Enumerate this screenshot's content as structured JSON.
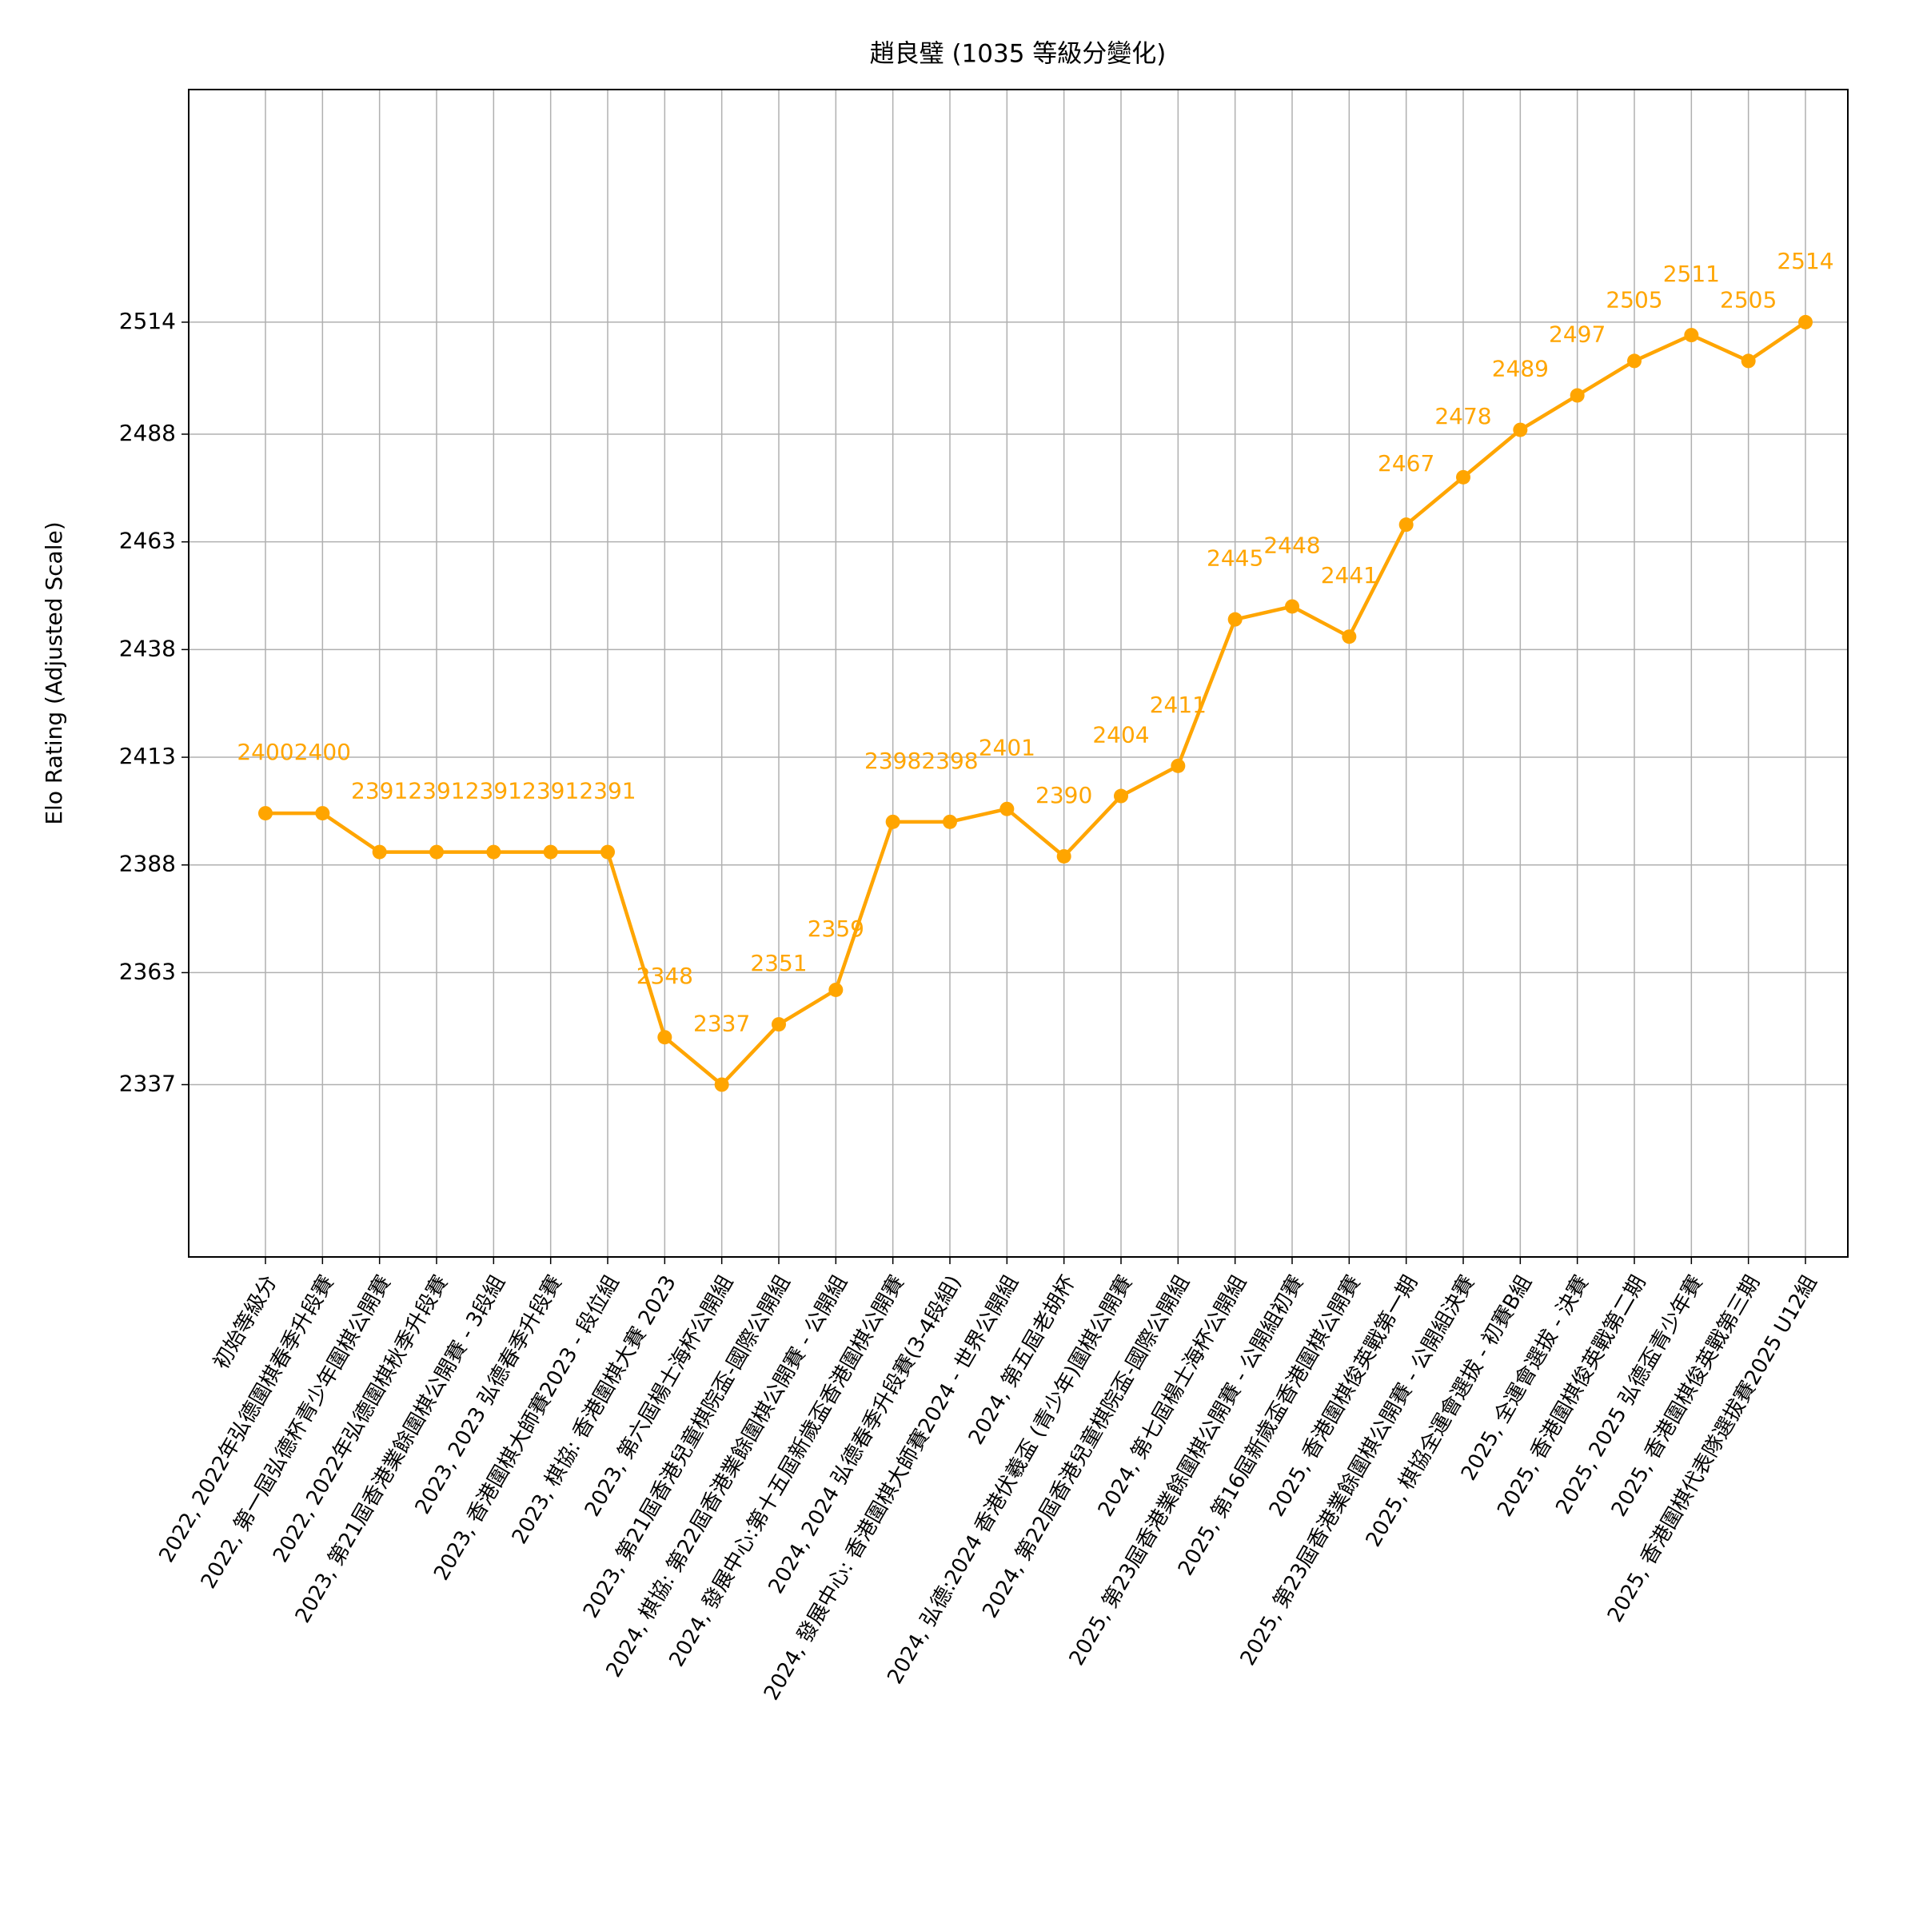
{
  "chart_data": {
    "type": "line",
    "title": "趙良璧 (1035 等級分變化)",
    "y_label": "Elo Rating (Adjusted Scale)",
    "categories": [
      "初始等級分",
      "2022, 2022年弘德圍棋春季升段賽",
      "2022, 第一屆弘德杯青少年圍棋公開賽",
      "2022, 2022年弘德圍棋秋季升段賽",
      "2023, 第21屆香港業餘圍棋公開賽 - 3段組",
      "2023, 2023 弘德春季升段賽",
      "2023, 香港圍棋大師賽2023 - 段位組",
      "2023, 棋協: 香港圍棋大賽 2023",
      "2023, 第六屆楊士海杯公開組",
      "2023, 第21屆香港兒童棋院盃-國際公開組",
      "2024, 棋協: 第22屆香港業餘圍棋公開賽 - 公開組",
      "2024, 發展中心:第十五屆新歲盃香港圍棋公開賽",
      "2024, 2024 弘德春季升段賽(3-4段組)",
      "2024, 發展中心: 香港圍棋大師賽2024 - 世界公開組",
      "2024, 第五屆老胡杯",
      "2024, 弘德:2024 香港伏羲盃 (青少年)圍棋公開賽",
      "2024, 第22屆香港兒童棋院盃-國際公開組",
      "2024, 第七屆楊士海杯公開組",
      "2025, 第23屆香港業餘圍棋公開賽 - 公開組初賽",
      "2025, 第16屆新歲盃香港圍棋公開賽",
      "2025, 香港圍棋俊英戰第一期",
      "2025, 第23屆香港業餘圍棋公開賽 - 公開組決賽",
      "2025, 棋協全運會選拔 - 初賽B組",
      "2025, 全運會選拔 - 決賽",
      "2025, 香港圍棋俊英戰第二期",
      "2025, 2025 弘德盃青少年賽",
      "2025, 香港圍棋俊英戰第三期",
      "2025, 香港圍棋代表隊選拔賽2025 U12組"
    ],
    "values": [
      2400,
      2400,
      2391,
      2391,
      2391,
      2391,
      2391,
      2348,
      2337,
      2351,
      2359,
      2398,
      2398,
      2401,
      2390,
      2404,
      2411,
      2445,
      2448,
      2441,
      2467,
      2478,
      2489,
      2497,
      2505,
      2511,
      2505,
      2514
    ],
    "color": "#ffa500",
    "ylim": [
      2297,
      2568
    ],
    "yticks": [
      2337,
      2363,
      2388,
      2413,
      2438,
      2463,
      2488,
      2514
    ],
    "grid": true
  }
}
